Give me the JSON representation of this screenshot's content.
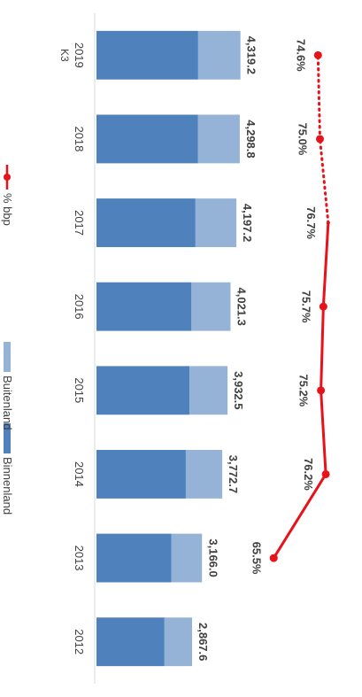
{
  "chart_data": {
    "type": "bar",
    "orientation": "stacked, rotated 90 degrees clockwise",
    "categories": [
      "2012",
      "2013",
      "2014",
      "2015",
      "2016",
      "2017",
      "2018",
      "2019"
    ],
    "sub_label": "K3",
    "totals": [
      "2,867.6",
      "3,166.0",
      "3,772.7",
      "3,932.5",
      "4,021.3",
      "4,197.2",
      "4,298.8",
      "4,319.2"
    ],
    "series": [
      {
        "name": "Binnenland",
        "color": "#4f81bd",
        "values": [
          2040,
          2250,
          2680,
          2790,
          2850,
          2970,
          3040,
          3050
        ]
      },
      {
        "name": "Buitenland",
        "color": "#95b3d7",
        "values": [
          827.6,
          916.0,
          1092.7,
          1142.5,
          1171.3,
          1227.2,
          1258.8,
          1269.2
        ]
      }
    ],
    "line": {
      "name": "% bbp",
      "color": "#e8121a",
      "values": [
        null,
        65.5,
        76.2,
        75.2,
        75.7,
        76.7,
        75.0,
        74.6
      ],
      "labels": [
        "",
        "65.5%",
        "76.2%",
        "75.2%",
        "75.7%",
        "76.7%",
        "75.0%",
        "74.6%"
      ],
      "dotted_from_index": 5
    },
    "legend_position": "bottom"
  }
}
